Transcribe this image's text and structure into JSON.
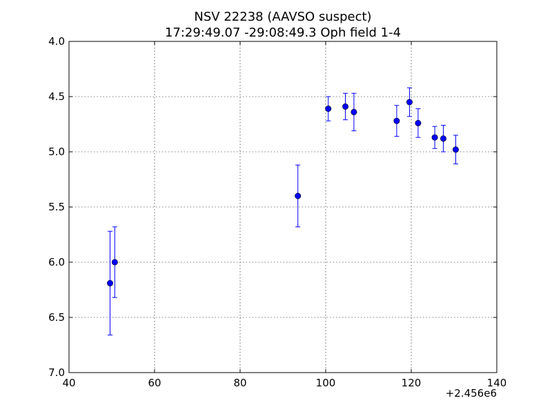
{
  "chart_data": {
    "type": "scatter",
    "title": "NSV 22238  (AAVSO suspect)",
    "subtitle": "17:29:49.07 -29:08:49.3 Oph field 1-4",
    "xlabel": "",
    "ylabel": "",
    "x_offset_label": "+2.456e6",
    "xlim": [
      40,
      140
    ],
    "ylim": [
      7.0,
      4.0
    ],
    "y_inverted": true,
    "x_ticks": [
      40,
      60,
      80,
      100,
      120,
      140
    ],
    "x_tick_labels": [
      "40",
      "60",
      "80",
      "100",
      "120",
      "140"
    ],
    "y_ticks": [
      4.0,
      4.5,
      5.0,
      5.5,
      6.0,
      6.5,
      7.0
    ],
    "y_tick_labels": [
      "4.0",
      "4.5",
      "5.0",
      "5.5",
      "6.0",
      "6.5",
      "7.0"
    ],
    "grid": true,
    "marker_color": "#0000ff",
    "points": [
      {
        "x": 49.6,
        "y": 6.19,
        "err": 0.47
      },
      {
        "x": 50.7,
        "y": 6.0,
        "err": 0.32
      },
      {
        "x": 93.5,
        "y": 5.4,
        "err": 0.28
      },
      {
        "x": 100.6,
        "y": 4.61,
        "err": 0.11
      },
      {
        "x": 104.6,
        "y": 4.59,
        "err": 0.12
      },
      {
        "x": 106.6,
        "y": 4.64,
        "err": 0.17
      },
      {
        "x": 116.6,
        "y": 4.72,
        "err": 0.14
      },
      {
        "x": 119.6,
        "y": 4.55,
        "err": 0.13
      },
      {
        "x": 121.6,
        "y": 4.74,
        "err": 0.13
      },
      {
        "x": 125.5,
        "y": 4.87,
        "err": 0.1
      },
      {
        "x": 127.5,
        "y": 4.88,
        "err": 0.12
      },
      {
        "x": 130.4,
        "y": 4.98,
        "err": 0.13
      }
    ]
  }
}
